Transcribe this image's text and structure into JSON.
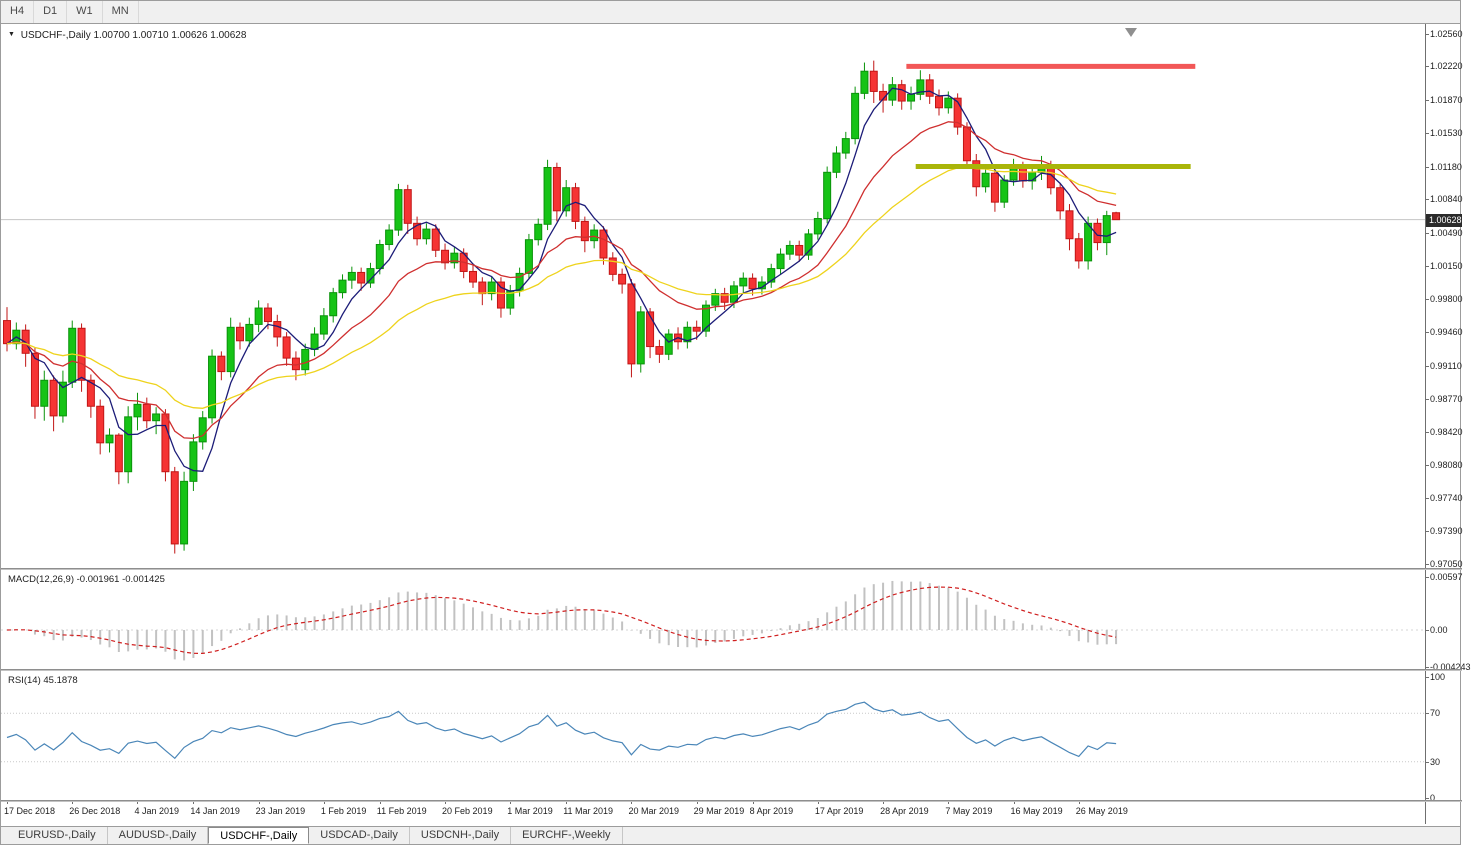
{
  "toolbar": {
    "timeframes": [
      "H4",
      "D1",
      "W1",
      "MN"
    ]
  },
  "chart_header": {
    "symbol_title": "USDCHF-,Daily",
    "ohlc_text": "1.00700 1.00710 1.00626 1.00628"
  },
  "tabs": [
    {
      "label": "EURUSD-,Daily",
      "active": false
    },
    {
      "label": "AUDUSD-,Daily",
      "active": false
    },
    {
      "label": "USDCHF-,Daily",
      "active": true
    },
    {
      "label": "USDCAD-,Daily",
      "active": false
    },
    {
      "label": "USDCNH-,Daily",
      "active": false
    },
    {
      "label": "EURCHF-,Weekly",
      "active": false
    }
  ],
  "chart_data": {
    "type": "candlestick",
    "symbol": "USDCHF-",
    "timeframe": "Daily",
    "current_bar": {
      "open": "1.00700",
      "high": "1.00710",
      "low": "1.00626",
      "close": "1.00628"
    },
    "current_price": 1.00628,
    "current_price_text": "1.00628",
    "ylim": [
      0.9701,
      1.0265
    ],
    "price_axis_labels": [
      "1.02560",
      "1.02220",
      "1.01870",
      "1.01530",
      "1.01180",
      "1.00840",
      "1.00490",
      "1.00150",
      "0.99800",
      "0.99460",
      "0.99110",
      "0.98770",
      "0.98420",
      "0.98080",
      "0.97740",
      "0.97390",
      "0.97050"
    ],
    "date_labels": [
      {
        "t": "17 Dec 2018",
        "i": 0
      },
      {
        "t": "26 Dec 2018",
        "i": 7
      },
      {
        "t": "4 Jan 2019",
        "i": 14
      },
      {
        "t": "14 Jan 2019",
        "i": 20
      },
      {
        "t": "23 Jan 2019",
        "i": 27
      },
      {
        "t": "1 Feb 2019",
        "i": 34
      },
      {
        "t": "11 Feb 2019",
        "i": 40
      },
      {
        "t": "20 Feb 2019",
        "i": 47
      },
      {
        "t": "1 Mar 2019",
        "i": 54
      },
      {
        "t": "11 Mar 2019",
        "i": 60
      },
      {
        "t": "20 Mar 2019",
        "i": 67
      },
      {
        "t": "29 Mar 2019",
        "i": 74
      },
      {
        "t": "8 Apr 2019",
        "i": 80
      },
      {
        "t": "17 Apr 2019",
        "i": 87
      },
      {
        "t": "28 Apr 2019",
        "i": 94
      },
      {
        "t": "7 May 2019",
        "i": 101
      },
      {
        "t": "16 May 2019",
        "i": 108
      },
      {
        "t": "26 May 2019",
        "i": 115
      }
    ],
    "candles_ohlc": [
      [
        0.9958,
        0.9972,
        0.9926,
        0.9934
      ],
      [
        0.9934,
        0.9956,
        0.9928,
        0.9948
      ],
      [
        0.9948,
        0.9954,
        0.991,
        0.9924
      ],
      [
        0.9924,
        0.993,
        0.9856,
        0.9869
      ],
      [
        0.9869,
        0.9906,
        0.9854,
        0.9896
      ],
      [
        0.9896,
        0.9901,
        0.9843,
        0.9859
      ],
      [
        0.9859,
        0.9906,
        0.9852,
        0.9894
      ],
      [
        0.9894,
        0.9958,
        0.9888,
        0.995
      ],
      [
        0.995,
        0.9955,
        0.9884,
        0.9896
      ],
      [
        0.9896,
        0.9902,
        0.9857,
        0.9869
      ],
      [
        0.9869,
        0.9876,
        0.9819,
        0.9831
      ],
      [
        0.9831,
        0.9846,
        0.9821,
        0.9839
      ],
      [
        0.9839,
        0.9841,
        0.9788,
        0.9801
      ],
      [
        0.9801,
        0.9869,
        0.9789,
        0.9858
      ],
      [
        0.9858,
        0.9883,
        0.9844,
        0.9871
      ],
      [
        0.9871,
        0.9878,
        0.9846,
        0.9854
      ],
      [
        0.9854,
        0.9868,
        0.984,
        0.9861
      ],
      [
        0.9861,
        0.9866,
        0.9791,
        0.9801
      ],
      [
        0.9801,
        0.9806,
        0.9716,
        0.9726
      ],
      [
        0.9726,
        0.9801,
        0.9719,
        0.9791
      ],
      [
        0.9791,
        0.984,
        0.9781,
        0.9832
      ],
      [
        0.9832,
        0.9864,
        0.9824,
        0.9857
      ],
      [
        0.9857,
        0.9928,
        0.9851,
        0.9921
      ],
      [
        0.9921,
        0.9926,
        0.9896,
        0.9905
      ],
      [
        0.9905,
        0.9961,
        0.9899,
        0.9951
      ],
      [
        0.9951,
        0.9956,
        0.9928,
        0.9937
      ],
      [
        0.9937,
        0.9961,
        0.9931,
        0.9954
      ],
      [
        0.9954,
        0.9979,
        0.9946,
        0.9971
      ],
      [
        0.9971,
        0.9976,
        0.9949,
        0.9957
      ],
      [
        0.9957,
        0.9964,
        0.9931,
        0.9941
      ],
      [
        0.9941,
        0.9946,
        0.9911,
        0.9919
      ],
      [
        0.9919,
        0.9926,
        0.9896,
        0.9907
      ],
      [
        0.9907,
        0.9934,
        0.9901,
        0.9928
      ],
      [
        0.9928,
        0.9951,
        0.9921,
        0.9944
      ],
      [
        0.9944,
        0.9971,
        0.9938,
        0.9963
      ],
      [
        0.9963,
        0.9992,
        0.9956,
        0.9987
      ],
      [
        0.9987,
        1.0006,
        0.9981,
        1.0
      ],
      [
        1.0,
        1.0014,
        0.9991,
        1.0008
      ],
      [
        1.0008,
        1.0013,
        0.9989,
        0.9997
      ],
      [
        0.9997,
        1.0018,
        0.9992,
        1.0012
      ],
      [
        1.0012,
        1.0042,
        1.0006,
        1.0037
      ],
      [
        1.0037,
        1.0058,
        1.0031,
        1.0052
      ],
      [
        1.0052,
        1.01,
        1.0046,
        1.0094
      ],
      [
        1.0094,
        1.0099,
        1.0048,
        1.0059
      ],
      [
        1.0059,
        1.0066,
        1.0036,
        1.0043
      ],
      [
        1.0043,
        1.0059,
        1.0037,
        1.0053
      ],
      [
        1.0053,
        1.0058,
        1.0024,
        1.0031
      ],
      [
        1.0031,
        1.0038,
        1.0011,
        1.0018
      ],
      [
        1.0018,
        1.0034,
        1.0012,
        1.0028
      ],
      [
        1.0028,
        1.0033,
        1.0002,
        1.0009
      ],
      [
        1.0009,
        1.0016,
        0.9992,
        0.9998
      ],
      [
        0.9998,
        1.0003,
        0.9974,
        0.9986
      ],
      [
        0.9986,
        1.0004,
        0.9979,
        0.9998
      ],
      [
        0.9998,
        1.0003,
        0.9961,
        0.9971
      ],
      [
        0.9971,
        0.9995,
        0.9964,
        0.9989
      ],
      [
        0.9989,
        1.0013,
        0.9983,
        1.0007
      ],
      [
        1.0007,
        1.0048,
        1.0001,
        1.0042
      ],
      [
        1.0042,
        1.0064,
        1.0036,
        1.0058
      ],
      [
        1.0058,
        1.0125,
        1.0052,
        1.0117
      ],
      [
        1.0117,
        1.0122,
        1.0061,
        1.0072
      ],
      [
        1.0072,
        1.0104,
        1.0066,
        1.0096
      ],
      [
        1.0096,
        1.0101,
        1.0053,
        1.0061
      ],
      [
        1.0061,
        1.0066,
        1.0029,
        1.0041
      ],
      [
        1.0041,
        1.0058,
        1.0033,
        1.0052
      ],
      [
        1.0052,
        1.0056,
        1.0016,
        1.0023
      ],
      [
        1.0023,
        1.0029,
        0.9999,
        1.0006
      ],
      [
        1.0006,
        1.0012,
        0.9986,
        0.9996
      ],
      [
        0.9996,
        1.0001,
        0.9899,
        0.9913
      ],
      [
        0.9913,
        0.9973,
        0.9904,
        0.9967
      ],
      [
        0.9967,
        0.9971,
        0.9919,
        0.9931
      ],
      [
        0.9931,
        0.9938,
        0.9914,
        0.9923
      ],
      [
        0.9923,
        0.9949,
        0.9917,
        0.9944
      ],
      [
        0.9944,
        0.9951,
        0.9928,
        0.9936
      ],
      [
        0.9936,
        0.9957,
        0.9929,
        0.9951
      ],
      [
        0.9951,
        0.9958,
        0.9938,
        0.9947
      ],
      [
        0.9947,
        0.9979,
        0.9941,
        0.9974
      ],
      [
        0.9974,
        0.9991,
        0.9968,
        0.9986
      ],
      [
        0.9986,
        0.9992,
        0.9969,
        0.9977
      ],
      [
        0.9977,
        0.9999,
        0.9971,
        0.9994
      ],
      [
        0.9994,
        1.0008,
        0.9987,
        1.0002
      ],
      [
        1.0002,
        1.0007,
        0.9984,
        0.9991
      ],
      [
        0.9991,
        1.0004,
        0.9985,
        0.9998
      ],
      [
        0.9998,
        1.0017,
        0.9992,
        1.0012
      ],
      [
        1.0012,
        1.0033,
        1.0006,
        1.0027
      ],
      [
        1.0027,
        1.0041,
        1.0021,
        1.0036
      ],
      [
        1.0036,
        1.0041,
        1.0019,
        1.0026
      ],
      [
        1.0026,
        1.0053,
        1.0021,
        1.0048
      ],
      [
        1.0048,
        1.0071,
        1.0042,
        1.0064
      ],
      [
        1.0064,
        1.0118,
        1.0059,
        1.0112
      ],
      [
        1.0112,
        1.0139,
        1.0106,
        1.0132
      ],
      [
        1.0132,
        1.0154,
        1.0126,
        1.0147
      ],
      [
        1.0147,
        1.0201,
        1.0141,
        1.0194
      ],
      [
        1.0194,
        1.0226,
        1.0188,
        1.0217
      ],
      [
        1.0217,
        1.0228,
        1.0184,
        1.0196
      ],
      [
        1.0196,
        1.0204,
        1.0174,
        1.0187
      ],
      [
        1.0187,
        1.0211,
        1.0181,
        1.0203
      ],
      [
        1.0203,
        1.0208,
        1.0177,
        1.0186
      ],
      [
        1.0186,
        1.0201,
        1.0177,
        1.0193
      ],
      [
        1.0193,
        1.0218,
        1.0187,
        1.0208
      ],
      [
        1.0208,
        1.0214,
        1.0183,
        1.0191
      ],
      [
        1.0191,
        1.0198,
        1.0171,
        1.0179
      ],
      [
        1.0179,
        1.0196,
        1.0173,
        1.0189
      ],
      [
        1.0189,
        1.0194,
        1.0151,
        1.0159
      ],
      [
        1.0159,
        1.0164,
        1.0117,
        1.0124
      ],
      [
        1.0124,
        1.0131,
        1.0087,
        1.0097
      ],
      [
        1.0097,
        1.0119,
        1.0091,
        1.0111
      ],
      [
        1.0111,
        1.0116,
        1.0071,
        1.0081
      ],
      [
        1.0081,
        1.0109,
        1.0075,
        1.0104
      ],
      [
        1.0104,
        1.0126,
        1.0098,
        1.0118
      ],
      [
        1.0118,
        1.0123,
        1.0096,
        1.0103
      ],
      [
        1.0103,
        1.0117,
        1.0094,
        1.0112
      ],
      [
        1.0112,
        1.0129,
        1.0104,
        1.0119
      ],
      [
        1.0119,
        1.0124,
        1.0089,
        1.0096
      ],
      [
        1.0096,
        1.0101,
        1.0063,
        1.0072
      ],
      [
        1.0072,
        1.0079,
        1.0031,
        1.0043
      ],
      [
        1.0043,
        1.0049,
        1.0012,
        1.002
      ],
      [
        1.002,
        1.0066,
        1.0011,
        1.0059
      ],
      [
        1.0059,
        1.0064,
        1.0031,
        1.0039
      ],
      [
        1.0039,
        1.0072,
        1.0026,
        1.0067
      ],
      [
        1.007,
        1.0071,
        1.00626,
        1.00628
      ]
    ],
    "moving_averages": [
      {
        "type": "sma",
        "period": 5,
        "color": "#1c1c78"
      },
      {
        "type": "ema",
        "period": 14,
        "color": "#cf2f2f"
      },
      {
        "type": "ema",
        "period": 30,
        "color": "#eed31c"
      }
    ],
    "annotations": [
      {
        "name": "resistance-line",
        "price": 1.0222,
        "from_bar": 96.5,
        "to_bar": 127.5,
        "color": "#f25757",
        "thickness": 5
      },
      {
        "name": "support-line",
        "price": 1.0118,
        "from_bar": 97.5,
        "to_bar": 127.0,
        "color": "#a9b509",
        "thickness": 5
      }
    ],
    "colors": {
      "up": "#16c316",
      "up_border": "#0a930a",
      "down": "#f53434",
      "down_border": "#c11616",
      "macd_bar": "#c2c2c2",
      "macd_signal": "#d02020",
      "rsi": "#4a86b8",
      "price_line": "#c4c4c4",
      "tag_bg": "#2b2b2b",
      "shift_marker": "#8f8f8f"
    },
    "macd": {
      "label": "MACD(12,26,9)",
      "value_main": "-0.001961",
      "value_signal": "-0.001425",
      "params": [
        12,
        26,
        9
      ],
      "axis_labels": [
        "0.00597",
        "0.00",
        "-0.004243"
      ],
      "axis_values": [
        0.00597,
        0,
        -0.004243
      ]
    },
    "rsi": {
      "label": "RSI(14)",
      "value": "45.1878",
      "period": 14,
      "axis_labels": [
        "100",
        "70",
        "30",
        "0"
      ],
      "axis_values": [
        100,
        70,
        30,
        0
      ],
      "levels": [
        70,
        30
      ]
    }
  }
}
